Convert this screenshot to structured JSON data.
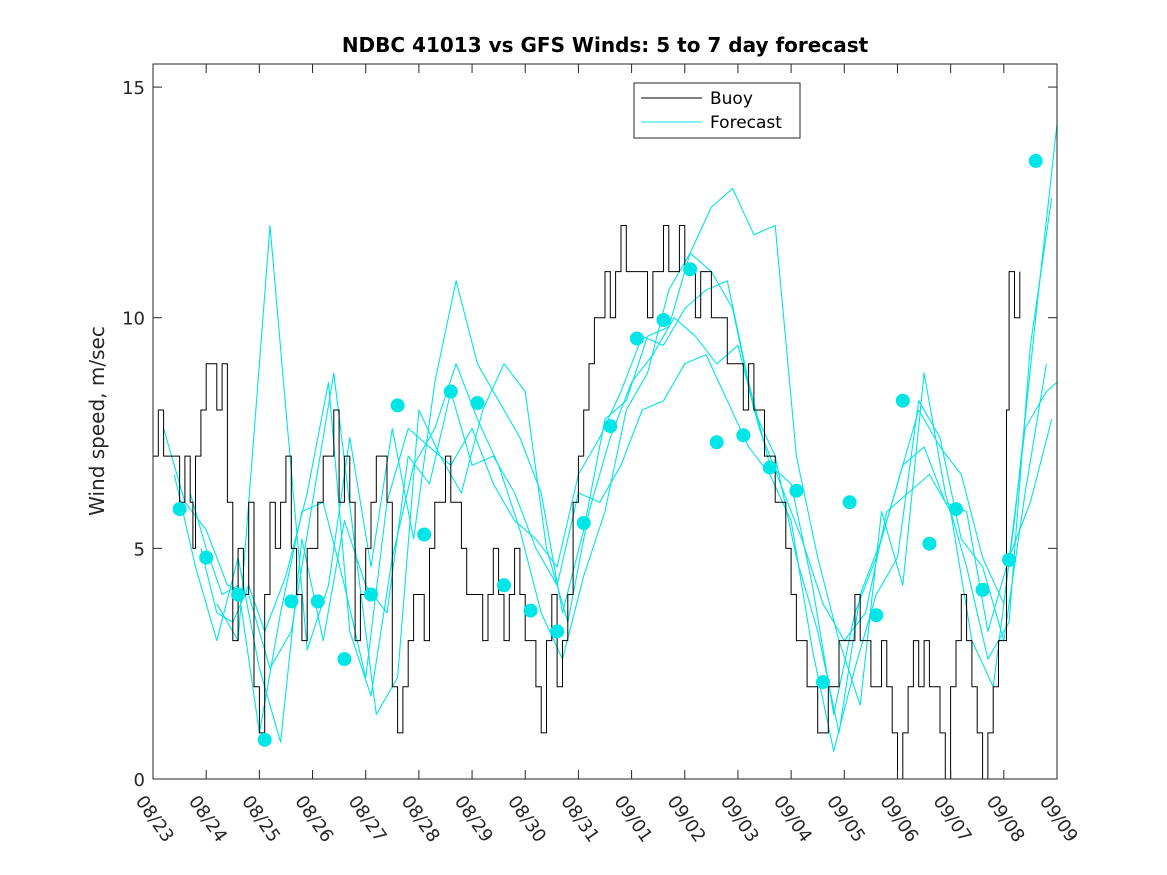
{
  "chart_data": {
    "type": "line",
    "title": "NDBC 41013 vs GFS Winds: 5 to 7 day forecast",
    "xlabel": "",
    "ylabel": "Wind speed, m/sec",
    "x_unit": "day offset from 08/23",
    "xlim": [
      0,
      17
    ],
    "ylim": [
      0,
      15.5
    ],
    "x_ticks": [
      {
        "x": 0,
        "label": "08/23"
      },
      {
        "x": 1,
        "label": "08/24"
      },
      {
        "x": 2,
        "label": "08/25"
      },
      {
        "x": 3,
        "label": "08/26"
      },
      {
        "x": 4,
        "label": "08/27"
      },
      {
        "x": 5,
        "label": "08/28"
      },
      {
        "x": 6,
        "label": "08/29"
      },
      {
        "x": 7,
        "label": "08/30"
      },
      {
        "x": 8,
        "label": "08/31"
      },
      {
        "x": 9,
        "label": "09/01"
      },
      {
        "x": 10,
        "label": "09/02"
      },
      {
        "x": 11,
        "label": "09/03"
      },
      {
        "x": 12,
        "label": "09/04"
      },
      {
        "x": 13,
        "label": "09/05"
      },
      {
        "x": 14,
        "label": "09/06"
      },
      {
        "x": 15,
        "label": "09/07"
      },
      {
        "x": 16,
        "label": "09/08"
      },
      {
        "x": 17,
        "label": "09/09"
      }
    ],
    "y_ticks": [
      {
        "y": 0,
        "label": "0"
      },
      {
        "y": 5,
        "label": "5"
      },
      {
        "y": 10,
        "label": "10"
      },
      {
        "y": 15,
        "label": "15"
      }
    ],
    "grid": false,
    "legend": {
      "position": "top-right",
      "entries": [
        {
          "name": "Buoy",
          "color": "#000000",
          "style": "line"
        },
        {
          "name": "Forecast",
          "color": "#00e5e5",
          "style": "line"
        }
      ]
    },
    "colors": {
      "buoy": "#000000",
      "forecast": "#00e5e5",
      "axes": "#262626"
    },
    "series": [
      {
        "name": "Buoy",
        "color": "#000000",
        "x": [
          0,
          0.1,
          0.2,
          0.35,
          0.5,
          0.6,
          0.7,
          0.75,
          0.8,
          0.9,
          1.0,
          1.1,
          1.2,
          1.3,
          1.4,
          1.5,
          1.6,
          1.7,
          1.8,
          1.9,
          2.0,
          2.1,
          2.2,
          2.3,
          2.4,
          2.5,
          2.6,
          2.7,
          2.8,
          2.9,
          3.0,
          3.1,
          3.2,
          3.3,
          3.4,
          3.5,
          3.6,
          3.7,
          3.8,
          3.9,
          4.0,
          4.1,
          4.2,
          4.3,
          4.4,
          4.5,
          4.6,
          4.7,
          4.8,
          4.9,
          5.0,
          5.1,
          5.2,
          5.3,
          5.4,
          5.5,
          5.6,
          5.7,
          5.8,
          5.9,
          6.0,
          6.1,
          6.2,
          6.3,
          6.4,
          6.5,
          6.6,
          6.7,
          6.8,
          6.9,
          7.0,
          7.1,
          7.2,
          7.3,
          7.4,
          7.5,
          7.6,
          7.7,
          7.8,
          7.9,
          8.0,
          8.1,
          8.2,
          8.3,
          8.4,
          8.5,
          8.6,
          8.7,
          8.8,
          8.9,
          9.0,
          9.1,
          9.2,
          9.3,
          9.4,
          9.5,
          9.6,
          9.7,
          9.8,
          9.9,
          10.0,
          10.1,
          10.2,
          10.3,
          10.4,
          10.5,
          10.6,
          10.7,
          10.8,
          10.9,
          11.0,
          11.1,
          11.2,
          11.3,
          11.4,
          11.5,
          11.6,
          11.7,
          11.8,
          11.9,
          12.0,
          12.1,
          12.2,
          12.3,
          12.4,
          12.5,
          12.6,
          12.7,
          12.8,
          12.9,
          13.0,
          13.1,
          13.2,
          13.3,
          13.4,
          13.5,
          13.6,
          13.7,
          13.8,
          13.9,
          14.0,
          14.1,
          14.2,
          14.3,
          14.4,
          14.5,
          14.6,
          14.7,
          14.8,
          14.9,
          15.0,
          15.1,
          15.2,
          15.3,
          15.4,
          15.5,
          15.6,
          15.7,
          15.8,
          15.9,
          16.0,
          16.05,
          16.1,
          16.2,
          16.3
        ],
        "y": [
          7,
          8,
          7,
          7,
          6,
          7,
          6,
          5,
          7,
          8,
          9,
          9,
          8,
          9,
          6,
          3,
          5,
          4,
          6,
          2,
          1,
          4,
          6,
          5,
          6,
          7,
          5,
          4,
          3,
          5,
          5,
          6,
          7,
          7,
          8,
          6,
          7,
          6,
          3,
          4,
          5,
          6,
          7,
          7,
          6,
          2,
          1,
          2,
          3,
          4,
          4,
          3,
          5,
          6,
          6,
          7,
          6,
          6,
          5,
          4,
          4,
          4,
          3,
          4,
          5,
          4,
          3,
          4,
          5,
          4,
          3,
          3,
          2,
          1,
          3,
          4,
          2,
          3,
          4,
          6,
          7,
          8,
          9,
          10,
          10,
          11,
          10,
          11,
          12,
          11,
          11,
          11,
          11,
          10,
          11,
          11,
          12,
          11,
          11,
          12,
          11,
          11,
          10,
          11,
          11,
          10,
          10,
          10,
          9,
          9,
          9,
          8,
          9,
          8,
          8,
          7,
          7,
          6,
          6,
          5,
          4,
          3,
          3,
          2,
          2,
          1,
          1,
          2,
          2,
          3,
          3,
          3,
          4,
          3,
          3,
          2,
          2,
          3,
          2,
          1,
          0,
          1,
          2,
          3,
          2,
          3,
          2,
          2,
          1,
          0,
          2,
          3,
          4,
          3,
          2,
          1,
          0,
          1,
          2,
          3,
          3,
          8,
          11,
          10,
          11
        ]
      },
      {
        "name": "Forecast",
        "color": "#00e5e5",
        "runs": [
          {
            "x": [
              0.7,
              1.0,
              1.3,
              1.6,
              2.0,
              2.4,
              2.8,
              3.2,
              3.6,
              4.0,
              4.4,
              4.8,
              5.2,
              5.6,
              6.0,
              6.4,
              6.8,
              7.2,
              7.6,
              8.0,
              8.4,
              8.8,
              9.2,
              9.6,
              10.0,
              10.4,
              10.8,
              11.2,
              11.6,
              12.0,
              12.4,
              12.8,
              13.2,
              13.6,
              14.0,
              14.4,
              14.8,
              15.2,
              15.6,
              16.0,
              16.4,
              16.8,
              17.0
            ],
            "y": [
              6.2,
              5.0,
              4.0,
              4.2,
              1.0,
              3.6,
              5.8,
              6.0,
              4.2,
              2.2,
              6.0,
              7.6,
              7.2,
              6.8,
              7.6,
              6.4,
              5.6,
              5.2,
              4.6,
              6.6,
              7.4,
              8.4,
              9.6,
              9.4,
              10.2,
              10.6,
              10.8,
              8.6,
              6.8,
              6.4,
              4.2,
              1.4,
              3.6,
              4.8,
              6.4,
              8.0,
              7.2,
              6.6,
              4.8,
              3.8,
              7.6,
              8.4,
              8.6
            ]
          },
          {
            "x": [
              0.9,
              1.2,
              1.5,
              1.8,
              2.1,
              2.5,
              2.9,
              3.3,
              3.7,
              4.1,
              4.5,
              4.9,
              5.3,
              5.7,
              6.1,
              6.5,
              6.9,
              7.3,
              7.7,
              8.1,
              8.5,
              8.9,
              9.3,
              9.7,
              10.1,
              10.5,
              10.9,
              11.3,
              11.7,
              12.1,
              12.5,
              12.9,
              13.3,
              13.7,
              14.1,
              14.5,
              14.9,
              15.3,
              15.7,
              16.1,
              16.5,
              16.9
            ],
            "y": [
              5.0,
              3.6,
              3.4,
              4.2,
              3.2,
              4.4,
              6.2,
              8.6,
              3.2,
              1.8,
              4.8,
              6.8,
              7.6,
              9.0,
              7.8,
              6.8,
              5.4,
              3.6,
              2.6,
              4.4,
              5.8,
              8.0,
              8.8,
              10.6,
              11.4,
              11.0,
              10.2,
              8.0,
              7.0,
              4.8,
              3.2,
              1.0,
              4.0,
              5.2,
              6.8,
              7.2,
              6.0,
              5.8,
              3.2,
              4.8,
              6.0,
              7.8
            ]
          },
          {
            "x": [
              1.2,
              1.6,
              2.0,
              2.2,
              2.5,
              2.9,
              3.3,
              3.7,
              4.1,
              4.5,
              4.9,
              5.3,
              5.7,
              6.1,
              6.5,
              6.9,
              7.3,
              7.7,
              8.1,
              8.5,
              8.9,
              9.3,
              9.7,
              10.1,
              10.5,
              10.9,
              11.3,
              11.7,
              12.1,
              12.5,
              12.9,
              13.3,
              13.7,
              14.1,
              14.5,
              14.9,
              15.3,
              15.7,
              16.1,
              16.5,
              16.9
            ],
            "y": [
              3.8,
              3.0,
              9.0,
              12.0,
              8.0,
              2.8,
              4.2,
              7.4,
              4.6,
              7.6,
              5.2,
              8.6,
              10.8,
              9.0,
              8.2,
              7.4,
              6.2,
              3.6,
              5.4,
              7.8,
              8.2,
              9.6,
              9.8,
              11.4,
              12.4,
              12.8,
              11.8,
              12.0,
              7.0,
              4.8,
              3.0,
              1.6,
              5.8,
              4.2,
              8.8,
              6.2,
              4.6,
              2.6,
              3.4,
              9.4,
              12.6
            ]
          },
          {
            "x": [
              0.2,
              0.6,
              1.0,
              1.4,
              1.8,
              2.2,
              2.6,
              3.0,
              3.4,
              3.8,
              4.2,
              4.6,
              5.0,
              5.4,
              5.8,
              6.2,
              6.6,
              7.0,
              7.4,
              7.8,
              8.2,
              8.6,
              9.0,
              9.4,
              9.8,
              10.2,
              10.6,
              11.0,
              11.4,
              11.8,
              12.2,
              12.6,
              13.0,
              13.4,
              13.8,
              14.2,
              14.6,
              15.0,
              15.4,
              15.8,
              16.2,
              16.6,
              17.0
            ],
            "y": [
              7.6,
              6.0,
              5.4,
              4.2,
              4.0,
              2.4,
              3.2,
              6.0,
              8.8,
              5.0,
              1.4,
              2.2,
              8.0,
              7.0,
              6.2,
              8.0,
              9.0,
              8.4,
              5.0,
              3.4,
              5.8,
              7.4,
              8.6,
              9.2,
              10.0,
              9.6,
              9.0,
              9.4,
              7.6,
              6.4,
              5.2,
              3.8,
              3.0,
              3.6,
              5.8,
              6.2,
              6.6,
              5.8,
              3.0,
              2.0,
              5.6,
              10.0,
              14.2
            ]
          },
          {
            "x": [
              0.4,
              0.8,
              1.2,
              1.6,
              2.0,
              2.4,
              2.8,
              3.2,
              3.6,
              4.0,
              4.4,
              4.8,
              5.2,
              5.6,
              6.0,
              6.4,
              6.8,
              7.2,
              7.6,
              8.0,
              8.4,
              8.8,
              9.2,
              9.6,
              10.0,
              10.4,
              10.8,
              11.2,
              11.6,
              12.0,
              12.4,
              12.8,
              13.2,
              13.6,
              14.0,
              14.4,
              14.8,
              15.2,
              15.6,
              16.0,
              16.4,
              16.8
            ],
            "y": [
              6.6,
              4.6,
              3.0,
              4.8,
              2.4,
              0.8,
              5.2,
              3.0,
              5.6,
              4.2,
              3.6,
              7.0,
              6.4,
              8.4,
              6.8,
              7.0,
              6.2,
              5.0,
              4.2,
              6.2,
              6.0,
              6.8,
              8.0,
              8.2,
              9.0,
              9.2,
              8.2,
              7.2,
              6.6,
              5.6,
              2.8,
              0.6,
              2.4,
              4.0,
              4.8,
              8.2,
              7.4,
              5.2,
              4.6,
              3.0,
              6.2,
              9.0
            ]
          }
        ]
      },
      {
        "name": "Forecast markers",
        "color": "#00e5e5",
        "x": [
          0.5,
          1.0,
          1.6,
          2.1,
          2.6,
          3.1,
          3.6,
          4.1,
          4.6,
          5.1,
          5.6,
          6.1,
          6.6,
          7.1,
          7.6,
          8.1,
          8.6,
          9.1,
          9.6,
          10.1,
          10.6,
          11.1,
          11.6,
          12.1,
          12.6,
          13.1,
          13.6,
          14.1,
          14.6,
          15.1,
          15.6,
          16.1,
          16.6
        ],
        "y": [
          5.85,
          4.8,
          4.0,
          0.85,
          3.85,
          3.85,
          2.6,
          4.0,
          8.1,
          5.3,
          8.4,
          8.15,
          4.2,
          3.65,
          3.2,
          5.55,
          7.65,
          9.55,
          9.95,
          11.05,
          7.3,
          7.45,
          6.75,
          6.25,
          2.1,
          6.0,
          3.55,
          8.2,
          5.1,
          5.85,
          4.1,
          4.75,
          13.4
        ]
      }
    ]
  }
}
